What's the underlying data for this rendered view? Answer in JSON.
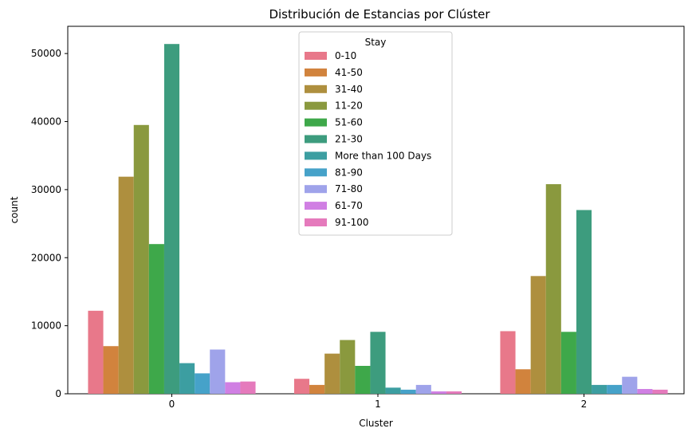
{
  "chart_data": {
    "type": "bar",
    "title": "Distribución de Estancias por Clúster",
    "xlabel": "Cluster",
    "ylabel": "count",
    "categories": [
      "0",
      "1",
      "2"
    ],
    "ylim": [
      0,
      54000
    ],
    "yticks": [
      0,
      10000,
      20000,
      30000,
      40000,
      50000
    ],
    "grid": false,
    "legend": {
      "title": "Stay",
      "placement": "top-center"
    },
    "series": [
      {
        "name": "0-10",
        "color": "#e8788a",
        "values": [
          12200,
          2200,
          9200
        ]
      },
      {
        "name": "41-50",
        "color": "#d1833d",
        "values": [
          7000,
          1300,
          3600
        ]
      },
      {
        "name": "31-40",
        "color": "#ae8f3e",
        "values": [
          31900,
          5900,
          17300
        ]
      },
      {
        "name": "11-20",
        "color": "#8a993e",
        "values": [
          39500,
          7900,
          30800
        ]
      },
      {
        "name": "51-60",
        "color": "#3ea84a",
        "values": [
          22000,
          4100,
          9100
        ]
      },
      {
        "name": "21-30",
        "color": "#3d9c7e",
        "values": [
          51400,
          9100,
          27000
        ]
      },
      {
        "name": "More than 100 Days",
        "color": "#3c9ea1",
        "values": [
          4500,
          900,
          1300
        ]
      },
      {
        "name": "81-90",
        "color": "#46a2c9",
        "values": [
          3000,
          600,
          1300
        ]
      },
      {
        "name": "71-80",
        "color": "#9fa3ea",
        "values": [
          6500,
          1300,
          2500
        ]
      },
      {
        "name": "61-70",
        "color": "#d07fe3",
        "values": [
          1700,
          350,
          700
        ]
      },
      {
        "name": "91-100",
        "color": "#e57abc",
        "values": [
          1800,
          350,
          600
        ]
      }
    ]
  }
}
